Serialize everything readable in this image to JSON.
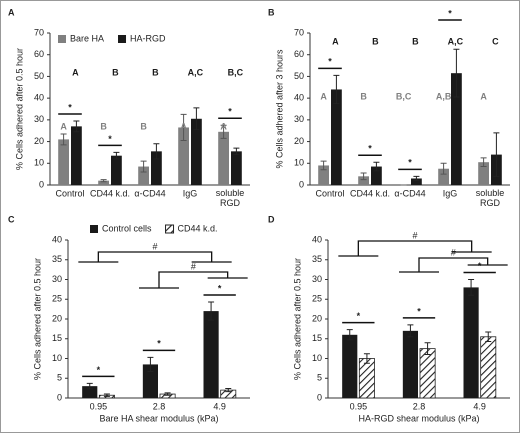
{
  "chart_data": [
    {
      "type": "bar",
      "panel_label": "A",
      "ylabel": "% Cells adhered after 0.5 hour",
      "categories": [
        "Control",
        "CD44 k.d.",
        "α-CD44",
        "IgG",
        "soluble RGD"
      ],
      "series": [
        {
          "name": "Bare HA",
          "color": "#808080",
          "values": [
            21,
            2,
            8.5,
            26.5,
            24.5
          ],
          "errors": [
            2.5,
            0.5,
            2.5,
            6,
            3
          ],
          "letters": [
            "A",
            "B",
            "B",
            "A",
            "A"
          ]
        },
        {
          "name": "HA-RGD",
          "color": "#1a1a1a",
          "values": [
            27,
            13.5,
            15.5,
            30.5,
            15.5
          ],
          "errors": [
            2.5,
            1.5,
            3.5,
            5,
            1.5
          ],
          "letters": [
            "A",
            "B",
            "B",
            "A,C",
            "B,C"
          ]
        }
      ],
      "significance": [
        "*",
        "*",
        null,
        null,
        "*"
      ],
      "ylim": [
        0,
        70
      ],
      "yticks": [
        0,
        10,
        20,
        30,
        40,
        50,
        60,
        70
      ],
      "legend": "upper left"
    },
    {
      "type": "bar",
      "panel_label": "B",
      "ylabel": "% Cells adhered after 3 hours",
      "categories": [
        "Control",
        "CD44 k.d.",
        "α-CD44",
        "IgG",
        "soluble RGD"
      ],
      "series": [
        {
          "name": "Bare HA",
          "color": "#808080",
          "values": [
            9,
            4,
            0,
            7.5,
            10.5
          ],
          "errors": [
            2,
            1.5,
            0,
            2.5,
            2
          ],
          "letters": [
            "A",
            "B",
            "B,C",
            "A,B",
            "A"
          ]
        },
        {
          "name": "HA-RGD",
          "color": "#1a1a1a",
          "values": [
            44,
            8.5,
            3,
            51.5,
            14
          ],
          "errors": [
            6.5,
            2,
            1,
            11,
            10
          ],
          "letters": [
            "A",
            "B",
            "B",
            "A,C",
            "C"
          ]
        }
      ],
      "significance": [
        "*",
        "*",
        "*",
        "*",
        null
      ],
      "ylim": [
        0,
        70
      ],
      "yticks": [
        0,
        10,
        20,
        30,
        40,
        50,
        60,
        70
      ]
    },
    {
      "type": "bar",
      "panel_label": "C",
      "ylabel": "% Cells adhered after 0.5 hour",
      "xlabel": "Bare HA shear modulus (kPa)",
      "categories": [
        "0.95",
        "2.8",
        "4.9"
      ],
      "series": [
        {
          "name": "Control cells",
          "color": "#1a1a1a",
          "values": [
            3,
            8.5,
            22
          ],
          "errors": [
            0.7,
            1.8,
            2.3
          ]
        },
        {
          "name": "CD44 k.d.",
          "color": "#ffffff",
          "hatch": true,
          "values": [
            0.7,
            1,
            2
          ],
          "errors": [
            0.3,
            0.3,
            0.4
          ]
        }
      ],
      "significance": [
        "*",
        "*",
        "*"
      ],
      "comparisons": [
        "#",
        "#"
      ],
      "ylim": [
        0,
        40
      ],
      "yticks": [
        0,
        5,
        10,
        15,
        20,
        25,
        30,
        35,
        40
      ],
      "legend": "upper center"
    },
    {
      "type": "bar",
      "panel_label": "D",
      "ylabel": "% Cells adhered after 0.5 hour",
      "xlabel": "HA-RGD shear modulus (kPa)",
      "categories": [
        "0.95",
        "2.8",
        "4.9"
      ],
      "series": [
        {
          "name": "Control cells",
          "color": "#1a1a1a",
          "values": [
            16,
            17,
            28
          ],
          "errors": [
            1.3,
            1.5,
            2
          ]
        },
        {
          "name": "CD44 k.d.",
          "color": "#ffffff",
          "hatch": true,
          "values": [
            10,
            12.5,
            15.5
          ],
          "errors": [
            1.2,
            1.5,
            1.2
          ]
        }
      ],
      "significance": [
        "*",
        "*",
        "*"
      ],
      "comparisons": [
        "#",
        "#"
      ],
      "ylim": [
        0,
        40
      ],
      "yticks": [
        0,
        5,
        10,
        15,
        20,
        25,
        30,
        35,
        40
      ]
    }
  ]
}
